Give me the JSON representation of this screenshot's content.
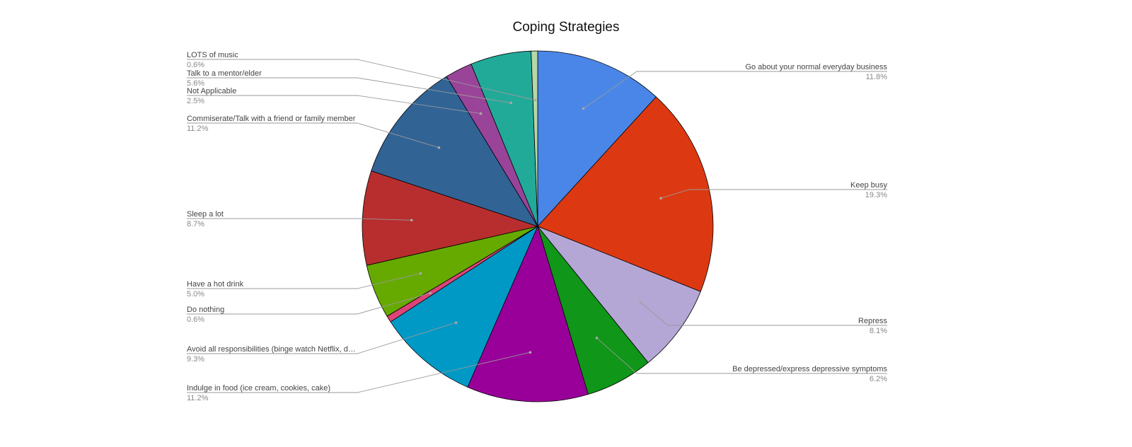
{
  "chart_data": {
    "type": "pie",
    "title": "Coping Strategies",
    "slices": [
      {
        "label": "Go about your normal everyday business",
        "display": "Go about your normal everyday business",
        "value": 11.8,
        "pct": "11.8%",
        "color": "#4a86e8",
        "side": "right"
      },
      {
        "label": "Keep busy",
        "display": "Keep busy",
        "value": 19.3,
        "pct": "19.3%",
        "color": "#dc3912",
        "side": "right"
      },
      {
        "label": "Repress",
        "display": "Repress",
        "value": 8.1,
        "pct": "8.1%",
        "color": "#b4a7d6",
        "side": "right"
      },
      {
        "label": "Be depressed/express depressive symptoms",
        "display": "Be depressed/express depressive symptoms",
        "value": 6.2,
        "pct": "6.2%",
        "color": "#109618",
        "side": "right"
      },
      {
        "label": "Indulge in food (ice cream, cookies, cake)",
        "display": "Indulge in food (ice cream, cookies, cake)",
        "value": 11.2,
        "pct": "11.2%",
        "color": "#990099",
        "side": "left"
      },
      {
        "label": "Avoid all responsibilities (binge watch Netflix, d…",
        "display": "Avoid all responsibilities (binge watch Netflix, d…",
        "value": 9.3,
        "pct": "9.3%",
        "color": "#0099c6",
        "side": "left"
      },
      {
        "label": "Do nothing",
        "display": "Do nothing",
        "value": 0.6,
        "pct": "0.6%",
        "color": "#dd4477",
        "side": "left"
      },
      {
        "label": "Have a hot drink",
        "display": "Have a hot drink",
        "value": 5.0,
        "pct": "5.0%",
        "color": "#66aa00",
        "side": "left"
      },
      {
        "label": "Sleep a lot",
        "display": "Sleep a lot",
        "value": 8.7,
        "pct": "8.7%",
        "color": "#b82e2e",
        "side": "left"
      },
      {
        "label": "Commiserate/Talk with a friend or family member",
        "display": "Commiserate/Talk with a friend or family member",
        "value": 11.2,
        "pct": "11.2%",
        "color": "#316395",
        "side": "left"
      },
      {
        "label": "Not Applicable",
        "display": "Not Applicable",
        "value": 2.5,
        "pct": "2.5%",
        "color": "#994499",
        "side": "left"
      },
      {
        "label": "Talk to a mentor/elder",
        "display": "Talk to a mentor/elder",
        "value": 5.6,
        "pct": "5.6%",
        "color": "#22aa99",
        "side": "left"
      },
      {
        "label": "LOTS of music",
        "display": "LOTS of music",
        "value": 0.6,
        "pct": "0.6%",
        "color": "#b6d7a8",
        "side": "left"
      }
    ],
    "legend": "none",
    "labels": "callout"
  }
}
